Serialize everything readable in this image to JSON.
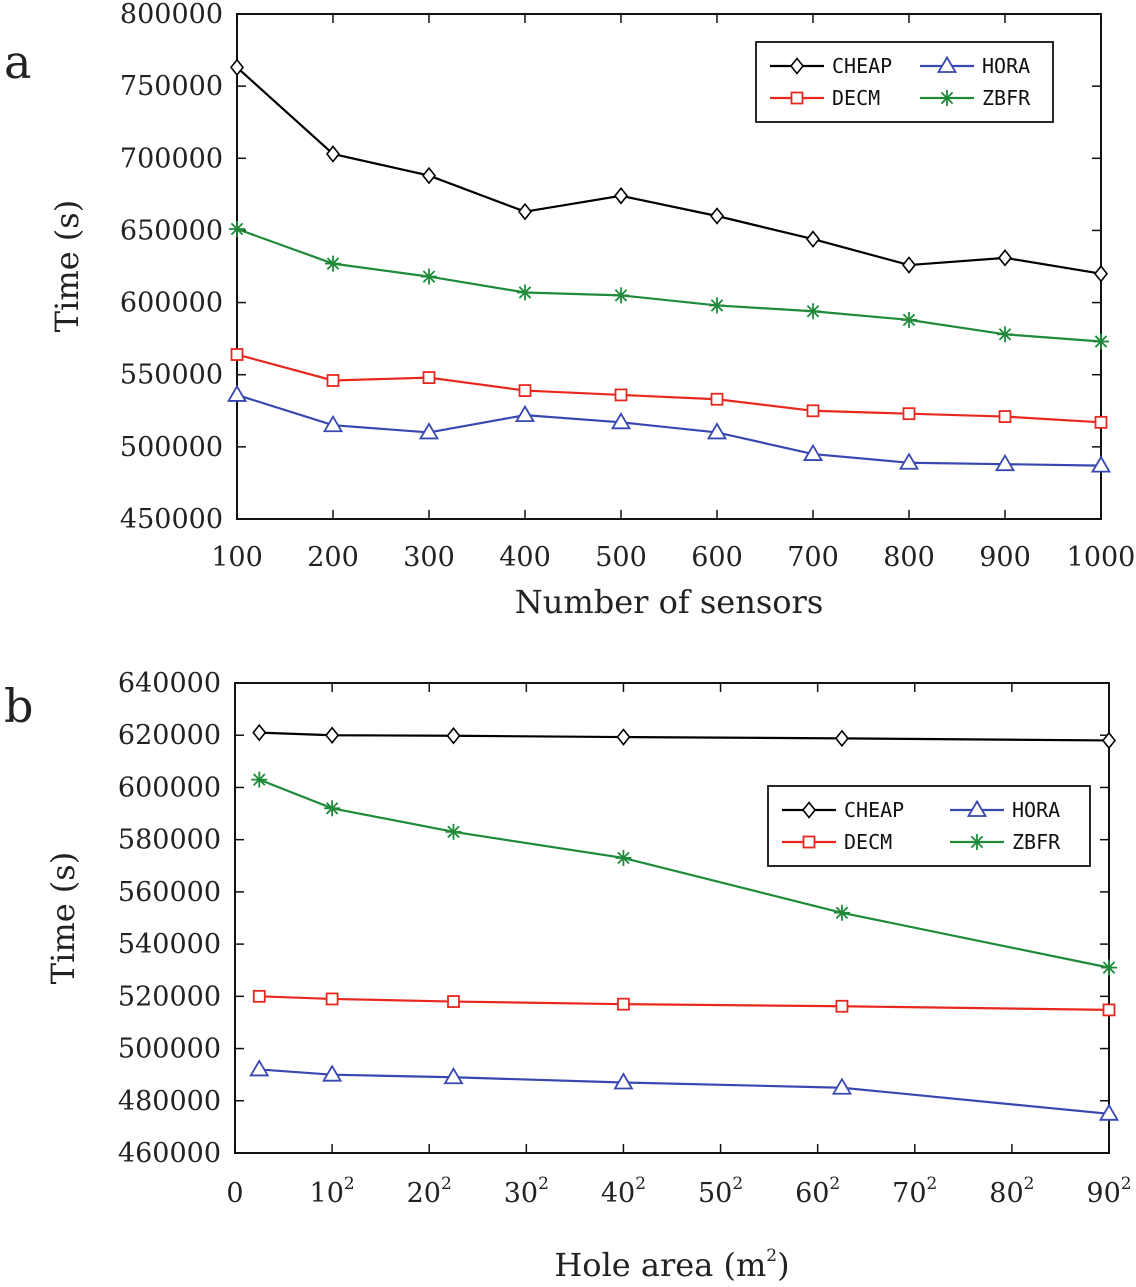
{
  "chart_data": [
    {
      "type": "line",
      "panel_label": "a",
      "xlabel": "Number of sensors",
      "ylabel": "Time (s)",
      "x": [
        100,
        200,
        300,
        400,
        500,
        600,
        700,
        800,
        900,
        1000
      ],
      "x_ticks": [
        100,
        200,
        300,
        400,
        500,
        600,
        700,
        800,
        900,
        1000
      ],
      "xlim": [
        100,
        1000
      ],
      "ylim": [
        450000,
        800000
      ],
      "y_ticks": [
        450000,
        500000,
        550000,
        600000,
        650000,
        700000,
        750000,
        800000
      ],
      "legend_position": "top-right",
      "series": [
        {
          "name": "CHEAP",
          "color": "#000000",
          "marker": "diamond",
          "values": [
            763000,
            703000,
            688000,
            663000,
            674000,
            660000,
            644000,
            626000,
            631000,
            620000
          ]
        },
        {
          "name": "DECM",
          "color": "#e8281e",
          "marker": "square",
          "values": [
            564000,
            546000,
            548000,
            539000,
            536000,
            533000,
            525000,
            523000,
            521000,
            517000
          ]
        },
        {
          "name": "HORA",
          "color": "#3848b0",
          "marker": "triangle",
          "values": [
            536000,
            515000,
            510000,
            522000,
            517000,
            510000,
            495000,
            489000,
            488000,
            487000
          ]
        },
        {
          "name": "ZBFR",
          "color": "#1f8a3a",
          "marker": "star",
          "values": [
            651000,
            627000,
            618000,
            607000,
            605000,
            598000,
            594000,
            588000,
            578000,
            573000
          ]
        }
      ]
    },
    {
      "type": "line",
      "panel_label": "b",
      "xlabel": "Hole area (m",
      "xlabel_sup": "2",
      "xlabel_end": ")",
      "ylabel": "Time (s)",
      "x": [
        25,
        100,
        225,
        400,
        625,
        900
      ],
      "xlim": [
        0,
        900
      ],
      "x_ticks": [
        {
          "value": 0,
          "base": "0",
          "sup": ""
        },
        {
          "value": 100,
          "base": "10",
          "sup": "2"
        },
        {
          "value": 200,
          "base": "20",
          "sup": "2"
        },
        {
          "value": 300,
          "base": "30",
          "sup": "2"
        },
        {
          "value": 400,
          "base": "40",
          "sup": "2"
        },
        {
          "value": 500,
          "base": "50",
          "sup": "2"
        },
        {
          "value": 600,
          "base": "60",
          "sup": "2"
        },
        {
          "value": 700,
          "base": "70",
          "sup": "2"
        },
        {
          "value": 800,
          "base": "80",
          "sup": "2"
        },
        {
          "value": 900,
          "base": "90",
          "sup": "2"
        }
      ],
      "ylim": [
        460000,
        640000
      ],
      "y_ticks": [
        460000,
        480000,
        500000,
        520000,
        540000,
        560000,
        580000,
        600000,
        620000,
        640000
      ],
      "legend_position": "right",
      "series": [
        {
          "name": "CHEAP",
          "color": "#000000",
          "marker": "diamond",
          "values": [
            621000,
            620000,
            619800,
            619300,
            618800,
            618000
          ]
        },
        {
          "name": "DECM",
          "color": "#e8281e",
          "marker": "square",
          "values": [
            520000,
            519000,
            518000,
            517000,
            516200,
            514800
          ]
        },
        {
          "name": "HORA",
          "color": "#3848b0",
          "marker": "triangle",
          "values": [
            492000,
            490000,
            489000,
            487000,
            485000,
            475000
          ]
        },
        {
          "name": "ZBFR",
          "color": "#1f8a3a",
          "marker": "star",
          "values": [
            603000,
            592000,
            583000,
            573000,
            552000,
            531000
          ]
        }
      ]
    }
  ]
}
